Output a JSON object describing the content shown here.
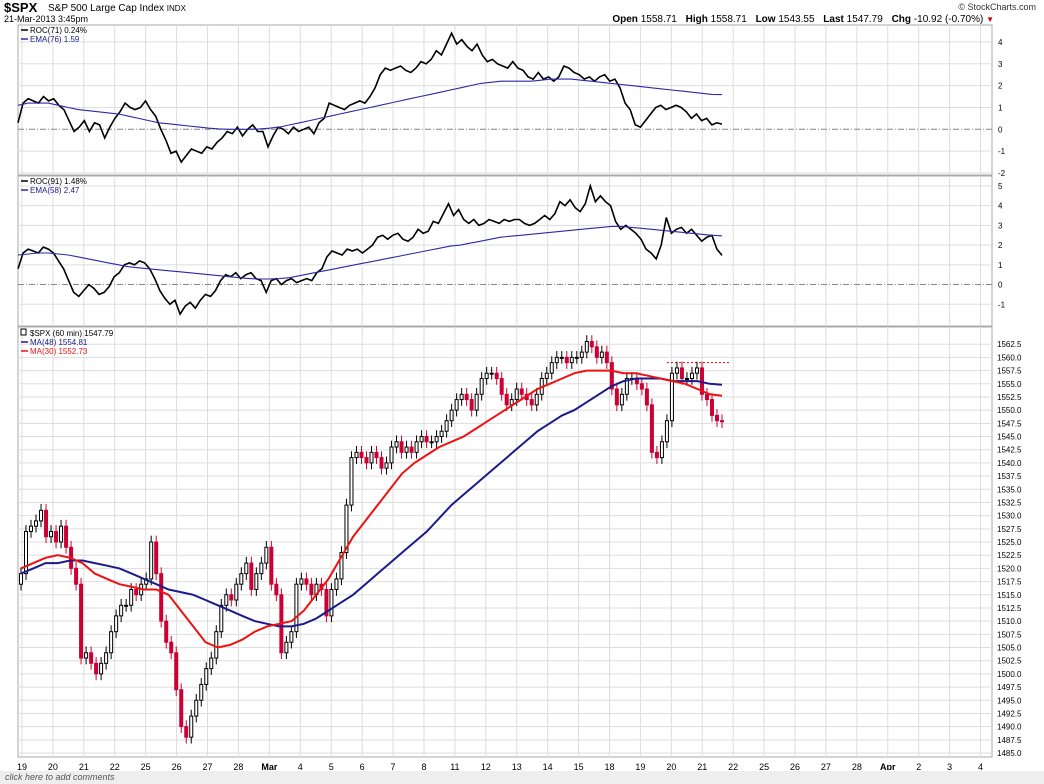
{
  "header": {
    "symbol": "$SPX",
    "name": "S&P 500 Large Cap Index",
    "exchange": "INDX",
    "date": "21-Mar-2013 3:45pm",
    "source": "© StockCharts.com",
    "open_label": "Open",
    "open": "1558.71",
    "high_label": "High",
    "high": "1558.71",
    "low_label": "Low",
    "low": "1543.55",
    "last_label": "Last",
    "last": "1547.79",
    "chg_label": "Chg",
    "chg": "-10.92 (-0.70%)",
    "chg_arrow": "▼"
  },
  "footer": {
    "link": "click here to add comments"
  },
  "colors": {
    "price_up": "#000000",
    "price_down": "#cc0033",
    "ma48": "#1a1a8c",
    "ma30": "#ee1111",
    "ema": "#2a2aa8",
    "roc": "#000000",
    "grid": "#dddddd"
  },
  "chart_data": [
    {
      "type": "line",
      "legend": [
        "ROC(71) 0.24%",
        "EMA(76) 1.59"
      ],
      "ylim": [
        -2,
        4.5
      ],
      "yticks": [
        -2,
        -1,
        0,
        1,
        2,
        3,
        4
      ],
      "ytick_labels": [
        "-2",
        "-1",
        "0",
        "1",
        "2",
        "3",
        "4"
      ],
      "series": [
        {
          "name": "ROC(71) 0.24%",
          "values": [
            0.3,
            1.2,
            1.4,
            1.3,
            1.2,
            1.5,
            1.3,
            1.4,
            1.1,
            0.9,
            0.4,
            -0.1,
            0.1,
            0.4,
            -0.1,
            0.3,
            0.2,
            -0.4,
            0.1,
            0.5,
            0.8,
            1.2,
            1.0,
            0.9,
            1.0,
            1.3,
            0.9,
            0.6,
            0.0,
            -0.5,
            -1.1,
            -1.0,
            -1.5,
            -1.2,
            -0.9,
            -1.0,
            -1.1,
            -0.8,
            -0.9,
            -0.6,
            -0.4,
            -0.1,
            -0.2,
            0.1,
            -0.3,
            0.0,
            0.2,
            -0.1,
            -0.1,
            -0.8,
            -0.3,
            0.1,
            0.0,
            -0.2,
            0.1,
            -0.1,
            0.0,
            0.1,
            -0.2,
            0.3,
            0.5,
            1.2,
            1.1,
            1.0,
            0.9,
            1.1,
            1.2,
            1.3,
            1.2,
            1.5,
            1.9,
            2.5,
            2.8,
            2.7,
            2.8,
            2.9,
            2.7,
            2.6,
            2.8,
            3.1,
            3.0,
            3.2,
            3.6,
            3.4,
            3.9,
            4.4,
            3.9,
            4.1,
            3.8,
            3.6,
            3.9,
            3.4,
            3.1,
            3.2,
            3.0,
            2.9,
            2.8,
            3.1,
            2.8,
            2.7,
            2.4,
            2.3,
            2.6,
            2.3,
            2.4,
            2.2,
            2.4,
            2.9,
            2.8,
            2.6,
            2.5,
            2.3,
            2.4,
            2.2,
            2.4,
            2.5,
            2.2,
            2.3,
            1.9,
            1.2,
            0.9,
            0.2,
            0.1,
            0.4,
            0.7,
            1.0,
            1.1,
            0.9,
            1.0,
            1.1,
            1.0,
            0.8,
            0.5,
            0.7,
            0.4,
            0.5,
            0.2,
            0.3,
            0.24
          ]
        },
        {
          "name": "EMA(76) 1.59",
          "values": [
            1.1,
            1.2,
            1.2,
            1.2,
            1.1,
            1.0,
            0.9,
            0.85,
            0.8,
            0.75,
            0.7,
            0.6,
            0.5,
            0.4,
            0.3,
            0.25,
            0.2,
            0.15,
            0.1,
            0.05,
            0.02,
            0.0,
            0.0,
            0.0,
            0.02,
            0.05,
            0.1,
            0.2,
            0.3,
            0.4,
            0.5,
            0.6,
            0.7,
            0.8,
            0.9,
            1.0,
            1.1,
            1.2,
            1.3,
            1.4,
            1.5,
            1.6,
            1.7,
            1.8,
            1.9,
            2.0,
            2.1,
            2.15,
            2.2,
            2.2,
            2.2,
            2.2,
            2.25,
            2.3,
            2.3,
            2.3,
            2.25,
            2.2,
            2.15,
            2.1,
            2.05,
            2.0,
            1.95,
            1.9,
            1.85,
            1.8,
            1.75,
            1.7,
            1.65,
            1.6,
            1.59
          ]
        }
      ]
    },
    {
      "type": "line",
      "legend": [
        "ROC(91) 1.48%",
        "EMA(58) 2.47"
      ],
      "ylim": [
        -2,
        5.2
      ],
      "yticks": [
        -1,
        0,
        1,
        2,
        3,
        4,
        5
      ],
      "ytick_labels": [
        "-1",
        "0",
        "1",
        "2",
        "3",
        "4",
        "5"
      ],
      "series": [
        {
          "name": "ROC(91) 1.48%",
          "values": [
            0.8,
            1.6,
            1.8,
            1.7,
            1.6,
            1.9,
            1.8,
            1.6,
            1.2,
            0.8,
            0.2,
            -0.4,
            -0.6,
            -0.3,
            0.0,
            -0.2,
            -0.5,
            -0.4,
            -0.1,
            0.4,
            0.6,
            1.0,
            1.1,
            1.0,
            1.2,
            1.1,
            0.8,
            0.3,
            -0.3,
            -0.7,
            -1.0,
            -0.8,
            -1.5,
            -1.1,
            -0.9,
            -1.2,
            -0.8,
            -0.5,
            -0.6,
            -0.3,
            0.2,
            0.5,
            0.4,
            0.6,
            0.3,
            0.5,
            0.6,
            0.3,
            0.2,
            -0.4,
            0.2,
            0.3,
            0.0,
            0.2,
            0.3,
            0.1,
            0.2,
            0.3,
            0.2,
            0.6,
            0.8,
            1.4,
            1.7,
            1.6,
            1.5,
            1.8,
            1.7,
            1.8,
            1.6,
            1.8,
            2.0,
            2.4,
            2.5,
            2.3,
            2.5,
            2.6,
            2.3,
            2.2,
            2.4,
            2.8,
            2.6,
            2.7,
            3.2,
            3.1,
            3.6,
            4.1,
            3.5,
            3.8,
            3.3,
            3.1,
            3.3,
            3.0,
            3.1,
            3.3,
            3.2,
            3.1,
            3.3,
            3.2,
            3.3,
            3.3,
            3.1,
            3.0,
            3.1,
            3.3,
            3.5,
            3.3,
            3.6,
            4.2,
            4.0,
            4.3,
            3.9,
            3.7,
            4.1,
            5.0,
            4.2,
            4.5,
            4.2,
            4.0,
            3.2,
            2.8,
            3.0,
            2.8,
            2.6,
            2.3,
            1.8,
            1.6,
            1.3,
            2.0,
            3.4,
            2.6,
            2.8,
            2.9,
            2.6,
            2.8,
            2.5,
            2.2,
            2.4,
            2.5,
            1.8,
            1.48
          ]
        },
        {
          "name": "EMA(58) 2.47",
          "values": [
            1.5,
            1.55,
            1.6,
            1.6,
            1.55,
            1.5,
            1.4,
            1.3,
            1.2,
            1.1,
            1.0,
            0.9,
            0.85,
            0.8,
            0.75,
            0.7,
            0.65,
            0.6,
            0.55,
            0.5,
            0.45,
            0.4,
            0.35,
            0.3,
            0.28,
            0.28,
            0.3,
            0.35,
            0.45,
            0.55,
            0.65,
            0.75,
            0.85,
            0.95,
            1.05,
            1.15,
            1.25,
            1.35,
            1.45,
            1.55,
            1.65,
            1.75,
            1.85,
            1.95,
            2.0,
            2.1,
            2.2,
            2.3,
            2.4,
            2.45,
            2.5,
            2.55,
            2.6,
            2.65,
            2.7,
            2.75,
            2.8,
            2.85,
            2.9,
            2.95,
            2.95,
            2.9,
            2.85,
            2.8,
            2.75,
            2.7,
            2.65,
            2.6,
            2.55,
            2.5,
            2.47
          ]
        }
      ]
    },
    {
      "type": "candlestick",
      "legend": [
        "$SPX (60 min) 1547.79",
        "MA(48) 1554.81",
        "MA(30) 1552.73"
      ],
      "ylim": [
        1485,
        1565
      ],
      "yticks": [
        1485,
        1487.5,
        1490,
        1492.5,
        1495,
        1497.5,
        1500,
        1502.5,
        1505,
        1507.5,
        1510,
        1512.5,
        1515,
        1517.5,
        1520,
        1522.5,
        1525,
        1527.5,
        1530,
        1532.5,
        1535,
        1537.5,
        1540,
        1542.5,
        1545,
        1547.5,
        1550,
        1552.5,
        1555,
        1557.5,
        1560,
        1562.5
      ],
      "ytick_labels": [
        "1485.0",
        "1487.5",
        "1490.0",
        "1492.5",
        "1495.0",
        "1497.5",
        "1500.0",
        "1502.5",
        "1505.0",
        "1507.5",
        "1510.0",
        "1512.5",
        "1515.0",
        "1517.5",
        "1520.0",
        "1522.5",
        "1525.0",
        "1527.5",
        "1530.0",
        "1532.5",
        "1535.0",
        "1537.5",
        "1540.0",
        "1542.5",
        "1545.0",
        "1547.5",
        "1550.0",
        "1552.5",
        "1555.0",
        "1557.5",
        "1560.0",
        "1562.5"
      ],
      "x_labels": [
        "19",
        "20",
        "21",
        "22",
        "25",
        "26",
        "27",
        "28",
        "Mar",
        "4",
        "5",
        "6",
        "7",
        "8",
        "11",
        "12",
        "13",
        "14",
        "15",
        "18",
        "19",
        "20",
        "21",
        "22",
        "25",
        "26",
        "27",
        "28",
        "Apr",
        "2",
        "3",
        "4"
      ],
      "x_label_weights": [
        "normal",
        "normal",
        "normal",
        "normal",
        "normal",
        "normal",
        "normal",
        "normal",
        "bold",
        "normal",
        "normal",
        "normal",
        "normal",
        "normal",
        "normal",
        "normal",
        "normal",
        "normal",
        "normal",
        "normal",
        "normal",
        "normal",
        "normal",
        "normal",
        "normal",
        "normal",
        "normal",
        "normal",
        "bold",
        "normal",
        "normal",
        "normal"
      ],
      "close": [
        1519,
        1527,
        1528,
        1529,
        1531,
        1526,
        1527,
        1525,
        1528,
        1524,
        1520,
        1517,
        1503,
        1504,
        1502,
        1500,
        1502,
        1504,
        1508,
        1511,
        1513,
        1513,
        1516,
        1515,
        1517,
        1518,
        1525,
        1519,
        1510,
        1506,
        1504,
        1497,
        1490,
        1488,
        1492,
        1495,
        1498,
        1501,
        1503,
        1508,
        1513,
        1515,
        1514,
        1517,
        1519,
        1521,
        1516,
        1519,
        1521,
        1524,
        1517,
        1515,
        1504,
        1506,
        1508,
        1517,
        1518,
        1517,
        1515,
        1517,
        1516,
        1511,
        1516,
        1518,
        1523,
        1532,
        1541,
        1542,
        1541,
        1540,
        1542,
        1541,
        1539,
        1540,
        1543,
        1544,
        1542,
        1543,
        1542,
        1544,
        1545,
        1544,
        1544,
        1545,
        1546,
        1548,
        1550,
        1552,
        1553,
        1552,
        1550,
        1553,
        1556,
        1557,
        1557,
        1556,
        1553,
        1551,
        1552,
        1554,
        1553,
        1552,
        1551,
        1553,
        1556,
        1557,
        1559,
        1560,
        1560,
        1559,
        1560,
        1560,
        1561,
        1563,
        1562,
        1560,
        1561,
        1559,
        1554,
        1551,
        1553,
        1556,
        1556,
        1555,
        1554,
        1551,
        1542,
        1541,
        1544,
        1548,
        1557,
        1558,
        1556,
        1556,
        1557,
        1558,
        1553,
        1552,
        1549,
        1548,
        1547.79
      ],
      "ma48": [
        1519,
        1520,
        1521,
        1521,
        1521.5,
        1521.5,
        1521,
        1520.5,
        1520,
        1519,
        1518,
        1517,
        1516,
        1515.5,
        1515,
        1514,
        1513,
        1512,
        1511,
        1510,
        1509.5,
        1509,
        1509,
        1509.5,
        1510.5,
        1512,
        1513.5,
        1515,
        1517,
        1519,
        1521,
        1523,
        1525,
        1527,
        1529.5,
        1532,
        1534,
        1536,
        1538,
        1540,
        1542,
        1544,
        1546,
        1547.5,
        1549,
        1550,
        1551.5,
        1553,
        1554.5,
        1555.5,
        1556,
        1556,
        1556,
        1555.5,
        1555.5,
        1555.5,
        1555,
        1554.81
      ],
      "ma30": [
        1520,
        1521,
        1522,
        1522.5,
        1522,
        1521,
        1519,
        1518,
        1517,
        1516.5,
        1516,
        1516,
        1515,
        1512,
        1509,
        1506,
        1505,
        1505.5,
        1506.5,
        1508,
        1509,
        1509.5,
        1510,
        1512,
        1515,
        1518,
        1522,
        1526,
        1529,
        1532,
        1535,
        1538,
        1540,
        1541.5,
        1543,
        1544,
        1545,
        1546.5,
        1548,
        1549.5,
        1551,
        1552.5,
        1554,
        1555,
        1556,
        1557,
        1557.5,
        1557.5,
        1557.5,
        1557,
        1557,
        1556.5,
        1556,
        1555.5,
        1555,
        1554,
        1553,
        1552.73
      ],
      "dashed_high_level": 1559
    }
  ]
}
